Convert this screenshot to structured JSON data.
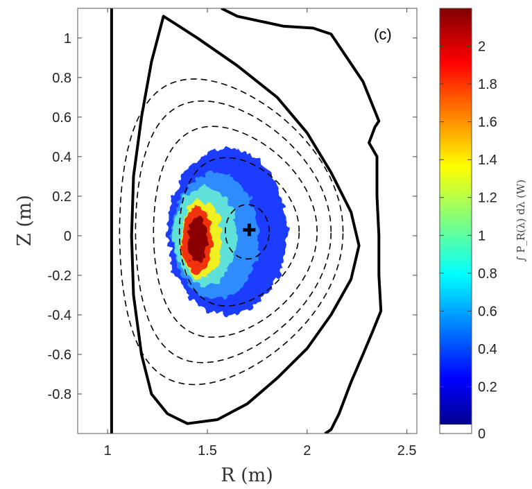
{
  "chart_data": {
    "type": "heatmap",
    "panel_label": "(c)",
    "xlabel": "R (m)",
    "ylabel": "Z (m)",
    "xlim": [
      0.85,
      2.55
    ],
    "ylim": [
      -1.0,
      1.15
    ],
    "x_ticks": [
      1,
      1.5,
      2,
      2.5
    ],
    "x_tick_labels": [
      "1",
      "1.5",
      "2",
      "2.5"
    ],
    "y_ticks": [
      1,
      0.8,
      0.6,
      0.4,
      0.2,
      0,
      -0.2,
      -0.4,
      -0.6,
      -0.8
    ],
    "y_tick_labels": [
      "1",
      "0.8",
      "0.6",
      "0.4",
      "0.2",
      "0",
      "-0.2",
      "-0.4",
      "-0.6",
      "-0.8"
    ],
    "colorbar": {
      "label": "∫ P_R(λ) dλ (W)",
      "range": [
        0,
        2.2
      ],
      "ticks": [
        2,
        1.8,
        1.6,
        1.4,
        1.2,
        1,
        0.8,
        0.6,
        0.4,
        0.2,
        0
      ],
      "tick_labels": [
        "2",
        "1.8",
        "1.6",
        "1.4",
        "1.2",
        "1",
        "0.8",
        "0.6",
        "0.4",
        "0.2",
        "0"
      ]
    },
    "magnetic_axis": {
      "R": 1.71,
      "Z": 0.03
    },
    "wall_inner_R": 1.02,
    "emission_peak": {
      "R": 1.45,
      "Z": -0.02,
      "value": 2.2
    },
    "emission_region": {
      "R_center": 1.6,
      "Z_center": 0.0,
      "R_halfwidth": 0.3,
      "Z_halfheight": 0.42
    },
    "boundary": [
      [
        1.28,
        1.11
      ],
      [
        1.45,
        1.0
      ],
      [
        1.65,
        0.86
      ],
      [
        1.85,
        0.7
      ],
      [
        2.0,
        0.52
      ],
      [
        2.12,
        0.32
      ],
      [
        2.22,
        0.12
      ],
      [
        2.26,
        -0.05
      ],
      [
        2.22,
        -0.22
      ],
      [
        2.12,
        -0.4
      ],
      [
        2.0,
        -0.57
      ],
      [
        1.85,
        -0.72
      ],
      [
        1.7,
        -0.85
      ],
      [
        1.55,
        -0.93
      ],
      [
        1.4,
        -0.95
      ],
      [
        1.3,
        -0.9
      ],
      [
        1.22,
        -0.8
      ],
      [
        1.17,
        -0.6
      ],
      [
        1.13,
        -0.3
      ],
      [
        1.12,
        0.0
      ],
      [
        1.13,
        0.3
      ],
      [
        1.17,
        0.6
      ],
      [
        1.22,
        0.88
      ],
      [
        1.28,
        1.11
      ]
    ],
    "outer_wall": [
      [
        1.57,
        1.15
      ],
      [
        1.65,
        1.11
      ],
      [
        1.88,
        1.06
      ],
      [
        2.03,
        1.05
      ],
      [
        2.12,
        1.02
      ],
      [
        2.28,
        0.78
      ],
      [
        2.36,
        0.58
      ],
      [
        2.34,
        0.55
      ],
      [
        2.31,
        0.47
      ],
      [
        2.35,
        0.4
      ],
      [
        2.35,
        0.2
      ],
      [
        2.36,
        0.0
      ],
      [
        2.36,
        -0.2
      ],
      [
        2.37,
        -0.38
      ],
      [
        2.33,
        -0.48
      ],
      [
        2.28,
        -0.6
      ],
      [
        2.22,
        -0.74
      ],
      [
        2.16,
        -0.9
      ],
      [
        2.12,
        -0.98
      ],
      [
        2.09,
        -1.0
      ]
    ],
    "flux_surfaces": [
      {
        "R0": 1.7,
        "Z0": 0.02,
        "a": 0.11,
        "kappa": 1.25,
        "delta": 0.0
      },
      {
        "R0": 1.66,
        "Z0": 0.02,
        "a": 0.3,
        "kappa": 1.25,
        "delta": 0.22
      },
      {
        "R0": 1.64,
        "Z0": 0.02,
        "a": 0.41,
        "kappa": 1.3,
        "delta": 0.28
      },
      {
        "R0": 1.63,
        "Z0": 0.02,
        "a": 0.49,
        "kappa": 1.35,
        "delta": 0.32
      },
      {
        "R0": 1.62,
        "Z0": 0.02,
        "a": 0.56,
        "kappa": 1.38,
        "delta": 0.34
      }
    ]
  }
}
